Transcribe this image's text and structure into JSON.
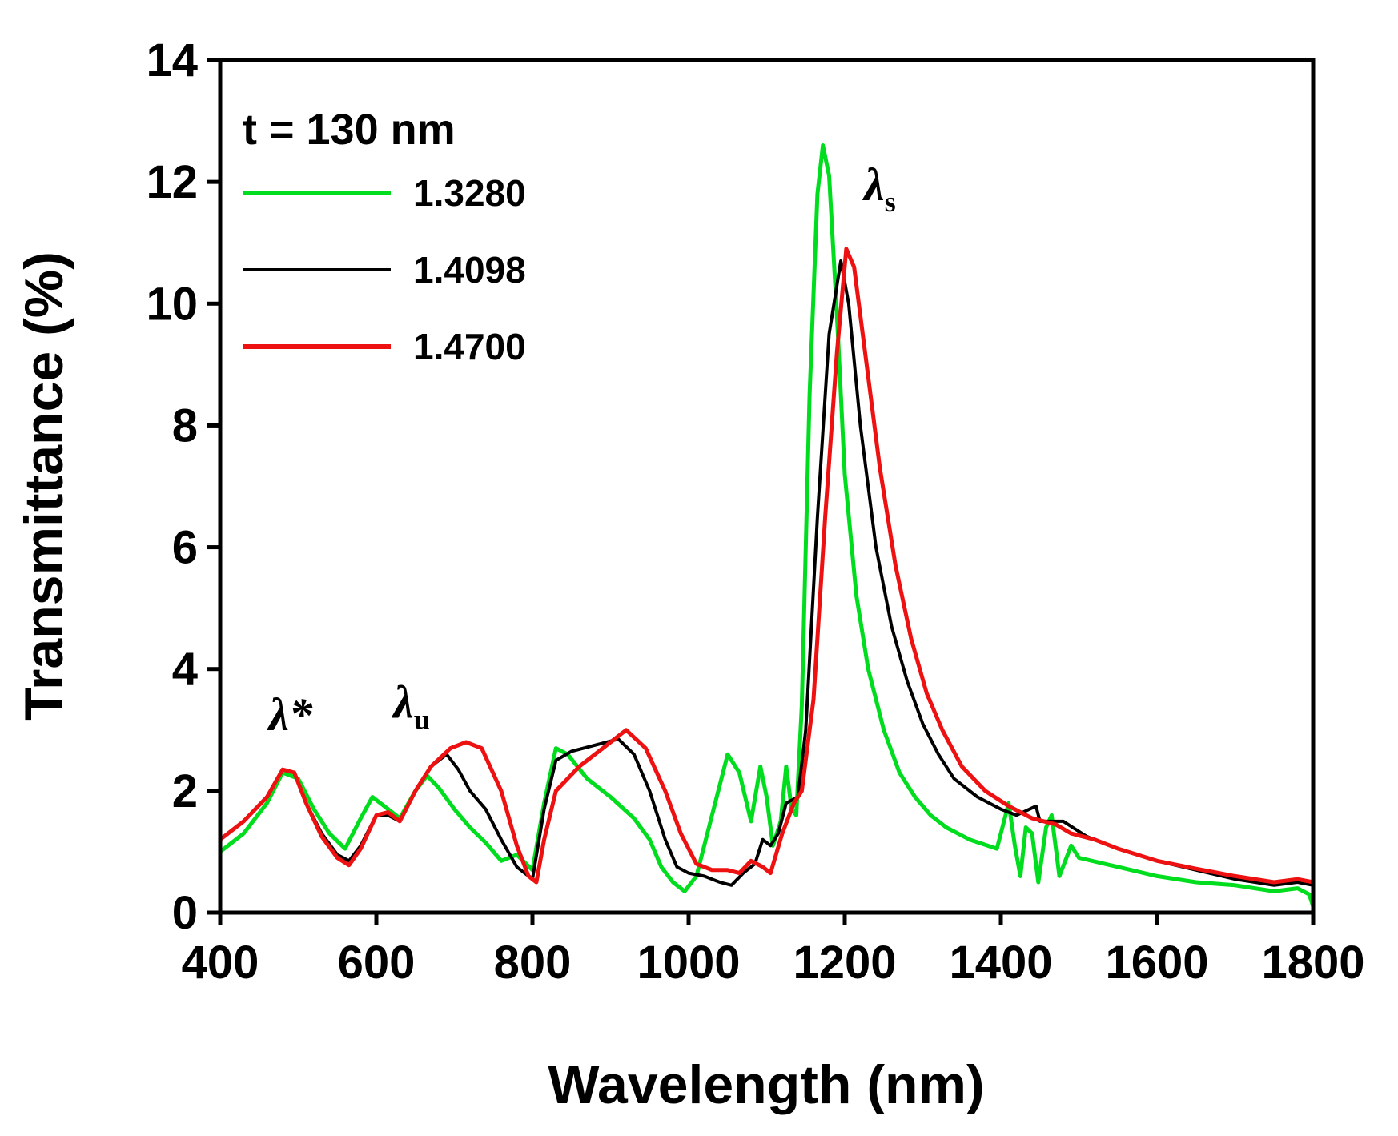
{
  "chart_data": {
    "type": "line",
    "title": "",
    "xlabel": "Wavelength (nm)",
    "ylabel": "Transmittance (%)",
    "xlim": [
      400,
      1800
    ],
    "ylim": [
      0,
      14
    ],
    "xticks": [
      400,
      600,
      800,
      1000,
      1200,
      1400,
      1600,
      1800
    ],
    "yticks": [
      0,
      2,
      4,
      6,
      8,
      10,
      12,
      14
    ],
    "grid": false,
    "legend": {
      "title": "t = 130 nm",
      "placement": "top-left"
    },
    "annotations": [
      {
        "text": "λ*",
        "x": 490,
        "y": 3.0
      },
      {
        "text": "λ",
        "sub": "u",
        "x": 645,
        "y": 3.2
      },
      {
        "text": "λ",
        "sub": "s",
        "x": 1245,
        "y": 11.7
      }
    ],
    "series": [
      {
        "name": "1.3280",
        "color": "#00dd1f",
        "points": [
          [
            400,
            1.0
          ],
          [
            430,
            1.3
          ],
          [
            460,
            1.8
          ],
          [
            480,
            2.3
          ],
          [
            500,
            2.2
          ],
          [
            520,
            1.7
          ],
          [
            540,
            1.3
          ],
          [
            560,
            1.05
          ],
          [
            580,
            1.55
          ],
          [
            595,
            1.9
          ],
          [
            610,
            1.75
          ],
          [
            630,
            1.55
          ],
          [
            650,
            2.0
          ],
          [
            665,
            2.25
          ],
          [
            680,
            2.05
          ],
          [
            700,
            1.7
          ],
          [
            720,
            1.4
          ],
          [
            740,
            1.15
          ],
          [
            760,
            0.85
          ],
          [
            780,
            0.95
          ],
          [
            800,
            0.7
          ],
          [
            815,
            1.8
          ],
          [
            830,
            2.7
          ],
          [
            845,
            2.6
          ],
          [
            870,
            2.2
          ],
          [
            900,
            1.9
          ],
          [
            930,
            1.55
          ],
          [
            950,
            1.2
          ],
          [
            965,
            0.75
          ],
          [
            980,
            0.5
          ],
          [
            995,
            0.35
          ],
          [
            1010,
            0.6
          ],
          [
            1030,
            1.6
          ],
          [
            1050,
            2.6
          ],
          [
            1065,
            2.3
          ],
          [
            1080,
            1.5
          ],
          [
            1092,
            2.4
          ],
          [
            1100,
            1.9
          ],
          [
            1108,
            1.1
          ],
          [
            1118,
            1.5
          ],
          [
            1125,
            2.4
          ],
          [
            1132,
            1.7
          ],
          [
            1138,
            1.6
          ],
          [
            1145,
            3.4
          ],
          [
            1155,
            8.5
          ],
          [
            1165,
            11.8
          ],
          [
            1172,
            12.6
          ],
          [
            1180,
            12.1
          ],
          [
            1190,
            9.8
          ],
          [
            1200,
            7.2
          ],
          [
            1215,
            5.2
          ],
          [
            1230,
            4.0
          ],
          [
            1250,
            3.0
          ],
          [
            1270,
            2.3
          ],
          [
            1290,
            1.9
          ],
          [
            1310,
            1.6
          ],
          [
            1330,
            1.4
          ],
          [
            1360,
            1.2
          ],
          [
            1395,
            1.05
          ],
          [
            1410,
            1.8
          ],
          [
            1418,
            1.1
          ],
          [
            1425,
            0.6
          ],
          [
            1432,
            1.4
          ],
          [
            1440,
            1.3
          ],
          [
            1448,
            0.5
          ],
          [
            1458,
            1.4
          ],
          [
            1465,
            1.6
          ],
          [
            1475,
            0.6
          ],
          [
            1490,
            1.1
          ],
          [
            1500,
            0.9
          ],
          [
            1550,
            0.75
          ],
          [
            1600,
            0.6
          ],
          [
            1650,
            0.5
          ],
          [
            1700,
            0.45
          ],
          [
            1750,
            0.35
          ],
          [
            1780,
            0.4
          ],
          [
            1795,
            0.3
          ],
          [
            1800,
            0.1
          ]
        ]
      },
      {
        "name": "1.4098",
        "color": "#000000",
        "points": [
          [
            400,
            1.2
          ],
          [
            430,
            1.5
          ],
          [
            460,
            1.9
          ],
          [
            480,
            2.35
          ],
          [
            495,
            2.3
          ],
          [
            510,
            1.8
          ],
          [
            530,
            1.3
          ],
          [
            550,
            0.95
          ],
          [
            565,
            0.85
          ],
          [
            580,
            1.1
          ],
          [
            600,
            1.6
          ],
          [
            615,
            1.6
          ],
          [
            630,
            1.5
          ],
          [
            650,
            2.0
          ],
          [
            670,
            2.4
          ],
          [
            690,
            2.6
          ],
          [
            705,
            2.35
          ],
          [
            720,
            2.0
          ],
          [
            740,
            1.7
          ],
          [
            760,
            1.2
          ],
          [
            780,
            0.75
          ],
          [
            800,
            0.55
          ],
          [
            815,
            1.7
          ],
          [
            830,
            2.5
          ],
          [
            850,
            2.65
          ],
          [
            880,
            2.75
          ],
          [
            910,
            2.85
          ],
          [
            930,
            2.6
          ],
          [
            950,
            2.0
          ],
          [
            970,
            1.2
          ],
          [
            985,
            0.75
          ],
          [
            1000,
            0.65
          ],
          [
            1020,
            0.6
          ],
          [
            1040,
            0.5
          ],
          [
            1055,
            0.45
          ],
          [
            1070,
            0.65
          ],
          [
            1085,
            0.8
          ],
          [
            1095,
            1.2
          ],
          [
            1105,
            1.1
          ],
          [
            1115,
            1.3
          ],
          [
            1125,
            1.8
          ],
          [
            1140,
            1.9
          ],
          [
            1150,
            3.0
          ],
          [
            1165,
            6.5
          ],
          [
            1180,
            9.5
          ],
          [
            1195,
            10.7
          ],
          [
            1205,
            10.0
          ],
          [
            1220,
            8.0
          ],
          [
            1240,
            6.0
          ],
          [
            1260,
            4.7
          ],
          [
            1280,
            3.8
          ],
          [
            1300,
            3.1
          ],
          [
            1320,
            2.6
          ],
          [
            1340,
            2.2
          ],
          [
            1370,
            1.9
          ],
          [
            1400,
            1.7
          ],
          [
            1420,
            1.6
          ],
          [
            1445,
            1.75
          ],
          [
            1450,
            1.5
          ],
          [
            1480,
            1.5
          ],
          [
            1510,
            1.25
          ],
          [
            1550,
            1.05
          ],
          [
            1600,
            0.85
          ],
          [
            1650,
            0.7
          ],
          [
            1700,
            0.55
          ],
          [
            1750,
            0.45
          ],
          [
            1780,
            0.5
          ],
          [
            1800,
            0.45
          ]
        ]
      },
      {
        "name": "1.4700",
        "color": "#ee1111",
        "points": [
          [
            400,
            1.2
          ],
          [
            430,
            1.5
          ],
          [
            460,
            1.9
          ],
          [
            480,
            2.35
          ],
          [
            495,
            2.3
          ],
          [
            510,
            1.8
          ],
          [
            530,
            1.25
          ],
          [
            550,
            0.9
          ],
          [
            565,
            0.78
          ],
          [
            580,
            1.05
          ],
          [
            600,
            1.6
          ],
          [
            615,
            1.65
          ],
          [
            630,
            1.5
          ],
          [
            650,
            2.0
          ],
          [
            670,
            2.4
          ],
          [
            695,
            2.7
          ],
          [
            715,
            2.8
          ],
          [
            735,
            2.7
          ],
          [
            760,
            2.0
          ],
          [
            780,
            1.1
          ],
          [
            795,
            0.6
          ],
          [
            805,
            0.5
          ],
          [
            815,
            1.2
          ],
          [
            830,
            2.0
          ],
          [
            860,
            2.4
          ],
          [
            890,
            2.7
          ],
          [
            920,
            3.0
          ],
          [
            945,
            2.7
          ],
          [
            970,
            2.0
          ],
          [
            990,
            1.3
          ],
          [
            1010,
            0.8
          ],
          [
            1030,
            0.7
          ],
          [
            1050,
            0.7
          ],
          [
            1065,
            0.65
          ],
          [
            1080,
            0.85
          ],
          [
            1095,
            0.75
          ],
          [
            1105,
            0.65
          ],
          [
            1120,
            1.3
          ],
          [
            1135,
            1.8
          ],
          [
            1145,
            2.0
          ],
          [
            1160,
            3.5
          ],
          [
            1175,
            6.5
          ],
          [
            1190,
            9.2
          ],
          [
            1202,
            10.9
          ],
          [
            1212,
            10.6
          ],
          [
            1225,
            9.3
          ],
          [
            1245,
            7.3
          ],
          [
            1265,
            5.7
          ],
          [
            1285,
            4.5
          ],
          [
            1305,
            3.6
          ],
          [
            1325,
            3.0
          ],
          [
            1350,
            2.4
          ],
          [
            1380,
            2.0
          ],
          [
            1410,
            1.75
          ],
          [
            1440,
            1.55
          ],
          [
            1470,
            1.45
          ],
          [
            1490,
            1.3
          ],
          [
            1520,
            1.2
          ],
          [
            1550,
            1.05
          ],
          [
            1600,
            0.85
          ],
          [
            1650,
            0.72
          ],
          [
            1700,
            0.6
          ],
          [
            1750,
            0.5
          ],
          [
            1780,
            0.55
          ],
          [
            1800,
            0.5
          ]
        ]
      }
    ]
  }
}
